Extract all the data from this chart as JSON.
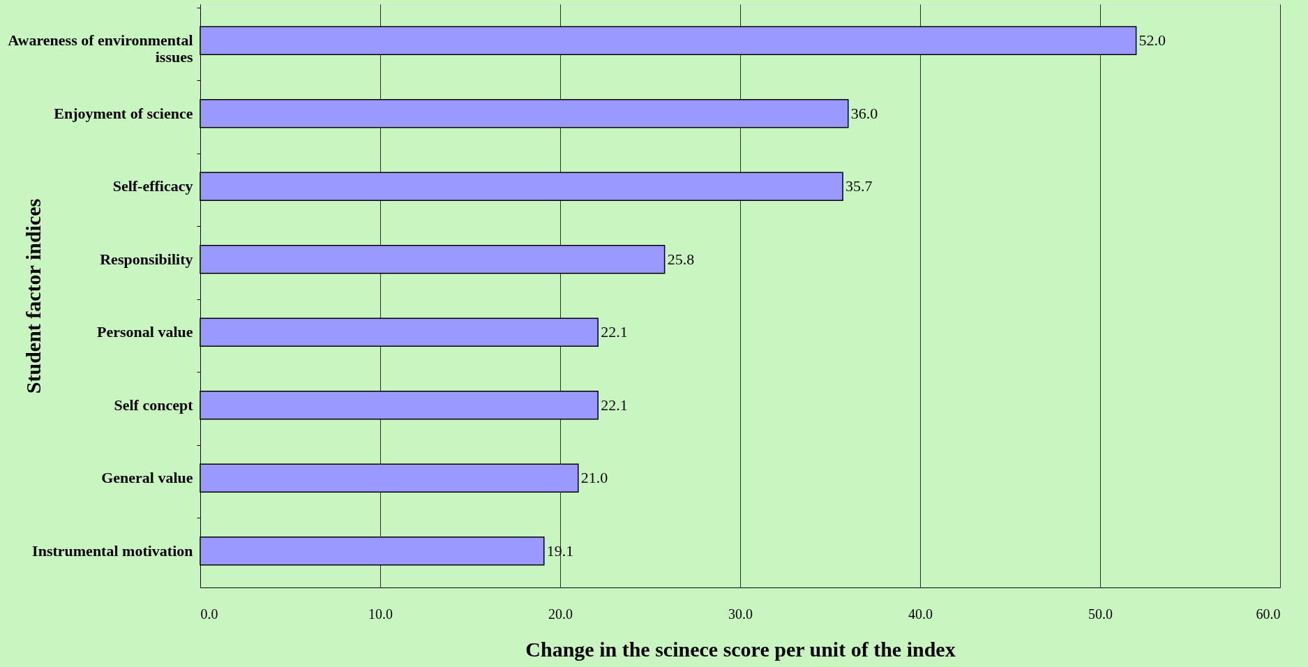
{
  "chart_data": {
    "type": "bar",
    "orientation": "horizontal",
    "xlabel": "Change in the scinece score per unit of the index",
    "ylabel": "Student factor indices",
    "categories": [
      "Awareness of environmental issues",
      "Enjoyment of science",
      "Self-efficacy",
      "Responsibility",
      "Personal value",
      "Self concept",
      "General  value",
      "Instrumental motivation"
    ],
    "values": [
      52.0,
      36.0,
      35.7,
      25.8,
      22.1,
      22.1,
      21.0,
      19.1
    ],
    "value_labels": [
      "52.0",
      "36.0",
      "35.7",
      "25.8",
      "22.1",
      "22.1",
      "21.0",
      "19.1"
    ],
    "color": "#9999ff",
    "xlim": [
      0,
      60
    ],
    "xticks": [
      {
        "value": 0,
        "label": "0.0"
      },
      {
        "value": 10,
        "label": "10.0"
      },
      {
        "value": 20,
        "label": "20.0"
      },
      {
        "value": 30,
        "label": "30.0"
      },
      {
        "value": 40,
        "label": "40.0"
      },
      {
        "value": 50,
        "label": "50.0"
      },
      {
        "value": 60,
        "label": "60.0"
      }
    ],
    "grid": "x"
  }
}
